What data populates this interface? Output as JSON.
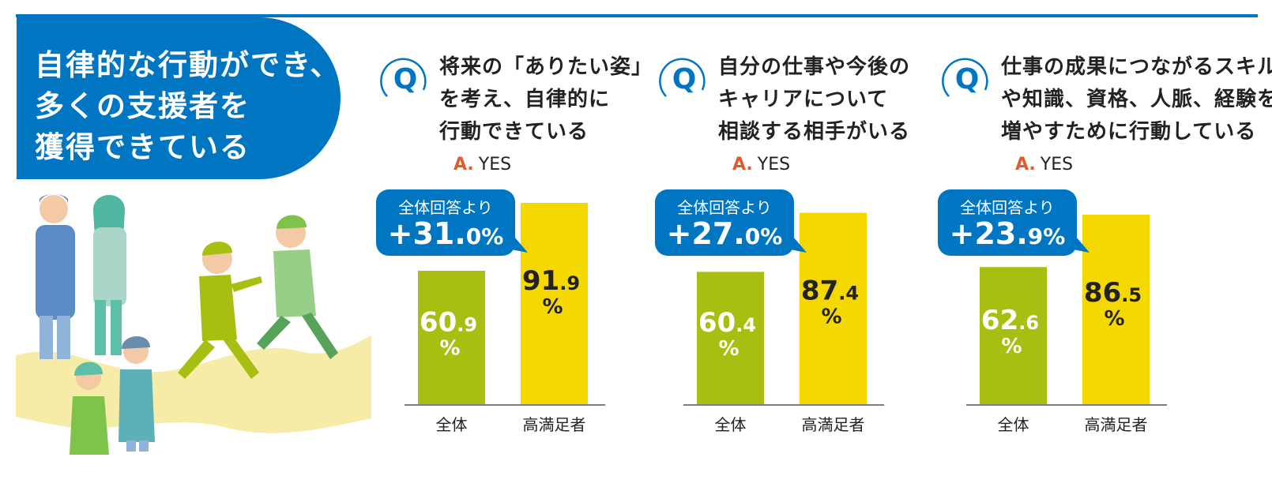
{
  "title": {
    "lines": [
      "自律的な行動ができ、",
      "多くの支援者を",
      "獲得できている"
    ]
  },
  "colors": {
    "accent_blue": "#0075c2",
    "overall_bar": "#a8bf12",
    "satisfied_bar": "#f5d800",
    "answer_label": "#e35a2b"
  },
  "panels": [
    {
      "question_mark": "Q",
      "question_lines": [
        "将来の「ありたい姿」",
        "を考え、自律的に",
        "行動できている"
      ],
      "answer_prefix": "A.",
      "answer_value": "YES",
      "bubble_caption": "全体回答より",
      "bubble_diff_main": "+31.",
      "bubble_diff_decimal": "0%",
      "bars": [
        {
          "label": "全体",
          "int": "60",
          "dec": ".9",
          "unit": "%"
        },
        {
          "label": "高満足者",
          "int": "91",
          "dec": ".9",
          "unit": "%"
        }
      ]
    },
    {
      "question_mark": "Q",
      "question_lines": [
        "自分の仕事や今後の",
        "キャリアについて",
        "相談する相手がいる"
      ],
      "answer_prefix": "A.",
      "answer_value": "YES",
      "bubble_caption": "全体回答より",
      "bubble_diff_main": "+27.",
      "bubble_diff_decimal": "0%",
      "bars": [
        {
          "label": "全体",
          "int": "60",
          "dec": ".4",
          "unit": "%"
        },
        {
          "label": "高満足者",
          "int": "87",
          "dec": ".4",
          "unit": "%"
        }
      ]
    },
    {
      "question_mark": "Q",
      "question_lines": [
        "仕事の成果につながるスキル",
        "や知識、資格、人脈、経験を",
        "増やすために行動している"
      ],
      "answer_prefix": "A.",
      "answer_value": "YES",
      "bubble_caption": "全体回答より",
      "bubble_diff_main": "+23.",
      "bubble_diff_decimal": "9%",
      "bars": [
        {
          "label": "全体",
          "int": "62",
          "dec": ".6",
          "unit": "%"
        },
        {
          "label": "高満足者",
          "int": "86",
          "dec": ".5",
          "unit": "%"
        }
      ]
    }
  ],
  "chart_data": [
    {
      "type": "bar",
      "categories": [
        "全体",
        "高満足者"
      ],
      "values": [
        60.9,
        91.9
      ],
      "unit": "%",
      "title": "将来の「ありたい姿」を考え、自律的に行動できている",
      "xlabel": "",
      "ylabel": "",
      "difference": 31.0,
      "grid": false
    },
    {
      "type": "bar",
      "categories": [
        "全体",
        "高満足者"
      ],
      "values": [
        60.4,
        87.4
      ],
      "unit": "%",
      "title": "自分の仕事や今後のキャリアについて相談する相手がいる",
      "xlabel": "",
      "ylabel": "",
      "difference": 27.0,
      "grid": false
    },
    {
      "type": "bar",
      "categories": [
        "全体",
        "高満足者"
      ],
      "values": [
        62.6,
        86.5
      ],
      "unit": "%",
      "title": "仕事の成果につながるスキルや知識、資格、人脈、経験を増やすために行動している",
      "xlabel": "",
      "ylabel": "",
      "difference": 23.9,
      "grid": false
    }
  ]
}
